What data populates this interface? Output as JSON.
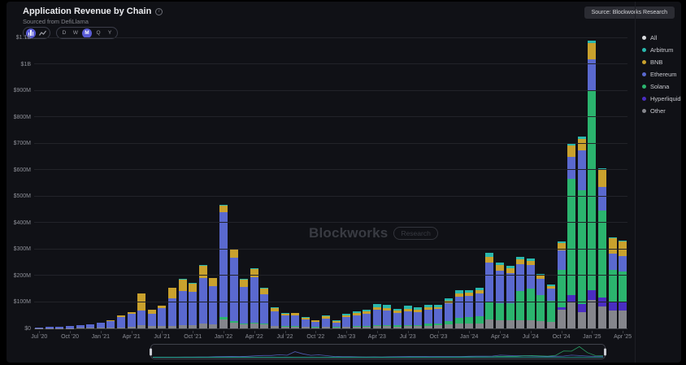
{
  "header": {
    "title": "Application Revenue by Chain",
    "subtitle": "Sourced from DefiLlama",
    "source_button": "Source: Blockworks Research"
  },
  "toolbar": {
    "chart_type_buttons": [
      {
        "name": "bar-chart",
        "selected": true
      },
      {
        "name": "line-chart",
        "selected": false
      }
    ],
    "intervals": [
      {
        "label": "D",
        "selected": false
      },
      {
        "label": "W",
        "selected": false
      },
      {
        "label": "M",
        "selected": true
      },
      {
        "label": "Q",
        "selected": false
      },
      {
        "label": "Y",
        "selected": false
      }
    ]
  },
  "watermark": {
    "brand": "Blockworks",
    "badge": "Research"
  },
  "legend": {
    "items": [
      {
        "label": "All",
        "color": "#d9dadd"
      },
      {
        "label": "Arbitrum",
        "color": "#2ab8ad"
      },
      {
        "label": "BNB",
        "color": "#c9a12d"
      },
      {
        "label": "Ethereum",
        "color": "#5a69cf"
      },
      {
        "label": "Solana",
        "color": "#2bb46e"
      },
      {
        "label": "Hyperliquid",
        "color": "#4a2dc2"
      },
      {
        "label": "Other",
        "color": "#85868c"
      }
    ]
  },
  "chart_data": {
    "type": "bar",
    "stacked": true,
    "title": "Application Revenue by Chain",
    "unit": "USD millions per month",
    "ylim": [
      0,
      1100
    ],
    "ytick_step": 100,
    "ytick_labels": [
      "$0",
      "$100M",
      "$200M",
      "$300M",
      "$400M",
      "$500M",
      "$600M",
      "$700M",
      "$800M",
      "$900M",
      "$1B",
      "$1.1B"
    ],
    "xtick_every": 3,
    "grid": true,
    "legend_position": "right",
    "categories": [
      "Jul '20",
      "Aug '20",
      "Sep '20",
      "Oct '20",
      "Nov '20",
      "Dec '20",
      "Jan '21",
      "Feb '21",
      "Mar '21",
      "Apr '21",
      "May '21",
      "Jun '21",
      "Jul '21",
      "Aug '21",
      "Sep '21",
      "Oct '21",
      "Nov '21",
      "Dec '21",
      "Jan '22",
      "Feb '22",
      "Mar '22",
      "Apr '22",
      "May '22",
      "Jun '22",
      "Jul '22",
      "Aug '22",
      "Sep '22",
      "Oct '22",
      "Nov '22",
      "Dec '22",
      "Jan '23",
      "Feb '23",
      "Mar '23",
      "Apr '23",
      "May '23",
      "Jun '23",
      "Jul '23",
      "Aug '23",
      "Sep '23",
      "Oct '23",
      "Nov '23",
      "Dec '23",
      "Jan '24",
      "Feb '24",
      "Mar '24",
      "Apr '24",
      "May '24",
      "Jun '24",
      "Jul '24",
      "Aug '24",
      "Sep '24",
      "Oct '24",
      "Nov '24",
      "Dec '24",
      "Jan '25",
      "Feb '25",
      "Mar '25",
      "Apr '25"
    ],
    "series": [
      {
        "name": "Arbitrum",
        "color": "#2ab8ad",
        "values": [
          0,
          0,
          0,
          0,
          0,
          0,
          0,
          0,
          0,
          0,
          0,
          0,
          0,
          1,
          2,
          2,
          3,
          2,
          4,
          3,
          3,
          3,
          3,
          2,
          2,
          2,
          2,
          2,
          3,
          2,
          5,
          7,
          8,
          12,
          10,
          8,
          10,
          9,
          9,
          9,
          10,
          12,
          11,
          11,
          14,
          11,
          10,
          10,
          9,
          7,
          6,
          7,
          8,
          8,
          10,
          7,
          5,
          5
        ]
      },
      {
        "name": "BNB",
        "color": "#c9a12d",
        "values": [
          0,
          0,
          0,
          0,
          0,
          0,
          0,
          3,
          6,
          8,
          65,
          15,
          10,
          38,
          45,
          33,
          45,
          30,
          26,
          30,
          28,
          30,
          22,
          12,
          8,
          9,
          7,
          5,
          8,
          5,
          7,
          8,
          8,
          10,
          10,
          8,
          9,
          8,
          8,
          8,
          10,
          12,
          12,
          13,
          22,
          20,
          18,
          16,
          15,
          12,
          10,
          28,
          40,
          45,
          62,
          65,
          58,
          55
        ]
      },
      {
        "name": "Ethereum",
        "color": "#5a69cf",
        "values": [
          2,
          4,
          6,
          8,
          10,
          13,
          19,
          24,
          38,
          48,
          55,
          48,
          68,
          105,
          128,
          125,
          175,
          145,
          395,
          240,
          138,
          172,
          112,
          56,
          40,
          41,
          27,
          20,
          30,
          18,
          36,
          41,
          46,
          58,
          56,
          48,
          53,
          50,
          54,
          53,
          66,
          80,
          80,
          85,
          150,
          125,
          115,
          104,
          90,
          60,
          45,
          75,
          85,
          150,
          120,
          88,
          60,
          58
        ]
      },
      {
        "name": "Solana",
        "color": "#2bb46e",
        "values": [
          0,
          0,
          0,
          0,
          0,
          0,
          0,
          0,
          0,
          0,
          0,
          0,
          0,
          0,
          0,
          0,
          0,
          0,
          8,
          5,
          4,
          5,
          4,
          2,
          2,
          2,
          1,
          1,
          2,
          1,
          2,
          3,
          3,
          4,
          4,
          4,
          5,
          5,
          7,
          9,
          15,
          24,
          25,
          28,
          64,
          62,
          64,
          110,
          120,
          100,
          80,
          140,
          440,
          430,
          750,
          330,
          120,
          115
        ]
      },
      {
        "name": "Hyperliquid",
        "color": "#4a2dc2",
        "values": [
          0,
          0,
          0,
          0,
          0,
          0,
          0,
          0,
          0,
          0,
          0,
          0,
          0,
          0,
          0,
          0,
          0,
          0,
          0,
          0,
          0,
          0,
          0,
          0,
          0,
          0,
          0,
          0,
          0,
          0,
          0,
          0,
          0,
          0,
          0,
          0,
          0,
          0,
          0,
          0,
          0,
          0,
          0,
          0,
          0,
          0,
          0,
          0,
          0,
          0,
          0,
          8,
          25,
          30,
          38,
          33,
          35,
          33
        ]
      },
      {
        "name": "Other",
        "color": "#85868c",
        "values": [
          1,
          1,
          1,
          1,
          2,
          2,
          3,
          3,
          4,
          6,
          12,
          8,
          8,
          10,
          12,
          12,
          17,
          15,
          35,
          22,
          15,
          18,
          14,
          8,
          6,
          6,
          5,
          4,
          5,
          4,
          5,
          6,
          7,
          8,
          8,
          7,
          8,
          8,
          10,
          11,
          14,
          17,
          17,
          18,
          35,
          32,
          30,
          30,
          30,
          27,
          25,
          72,
          100,
          62,
          108,
          84,
          67,
          67
        ]
      }
    ]
  },
  "minimap": {
    "sparkline_series": [
      "Ethereum",
      "Solana",
      "Arbitrum"
    ]
  }
}
